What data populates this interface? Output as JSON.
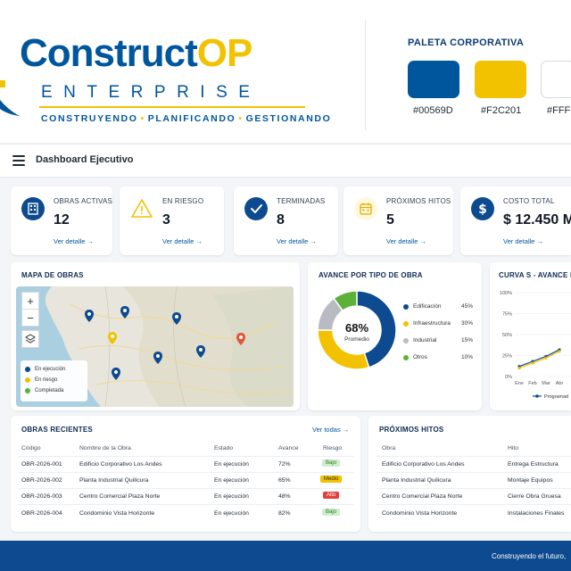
{
  "brand": {
    "name_main": "Construct",
    "name_accent": "OP",
    "subtitle": "ENTERPRISE",
    "tagline": [
      "CONSTRUYENDO",
      "PLANIFICANDO",
      "GESTIONANDO"
    ]
  },
  "palette": {
    "title": "PALETA CORPORATIVA",
    "swatches": [
      {
        "hex": "#00569D",
        "label": "#00569D"
      },
      {
        "hex": "#F2C201",
        "label": "#F2C201"
      },
      {
        "hex": "#FFFFFF",
        "label": "#FFFF"
      }
    ]
  },
  "topbar": {
    "menu_icon": "hamburger-menu-icon",
    "title": "Dashboard Ejecutivo"
  },
  "kpis": [
    {
      "label": "OBRAS ACTIVAS",
      "value": "12",
      "link": "Ver detalle →",
      "icon": "building-icon",
      "color": "#0d4a8f"
    },
    {
      "label": "EN RIESGO",
      "value": "3",
      "link": "Ver detalle →",
      "icon": "warning-icon",
      "color": "#F2C201"
    },
    {
      "label": "TERMINADAS",
      "value": "8",
      "link": "Ver detalle →",
      "icon": "check-icon",
      "color": "#0d4a8f"
    },
    {
      "label": "PRÓXIMOS HITOS",
      "value": "5",
      "link": "Ver detalle →",
      "icon": "calendar-icon",
      "color": "#F2C201"
    },
    {
      "label": "COSTO TOTAL",
      "value": "$ 12.450 M",
      "link": "Ver detalle →",
      "icon": "dollar-icon",
      "color": "#0d4a8f"
    }
  ],
  "map_panel": {
    "title": "MAPA DE OBRAS",
    "zoom_in": "+",
    "zoom_out": "−",
    "legend": [
      {
        "label": "En ejecución",
        "color": "#0d4a8f"
      },
      {
        "label": "En riesgo",
        "color": "#F2C201"
      },
      {
        "label": "Completada",
        "color": "#5bb13a"
      }
    ]
  },
  "donut_panel": {
    "title": "AVANCE POR TIPO DE OBRA",
    "center_value": "68%",
    "center_label": "Promedio",
    "slices": [
      {
        "label": "Edificación",
        "value": 45,
        "pct": "45%",
        "color": "#0d4a8f"
      },
      {
        "label": "Infraestructura",
        "value": 30,
        "pct": "30%",
        "color": "#F2C201"
      },
      {
        "label": "Industrial",
        "value": 15,
        "pct": "15%",
        "color": "#b8bcc2"
      },
      {
        "label": "Otros",
        "value": 10,
        "pct": "10%",
        "color": "#5bb13a"
      }
    ]
  },
  "chart_data": {
    "type": "line",
    "title": "CURVA S - AVANCE FÍS",
    "x": [
      "Ene",
      "Feb",
      "Mar",
      "Abr"
    ],
    "y_ticks": [
      "100%",
      "75%",
      "50%",
      "25%",
      "0%"
    ],
    "ylim": [
      0,
      100
    ],
    "grid": true,
    "series": [
      {
        "name": "Programado",
        "values": [
          12,
          18,
          24,
          32
        ],
        "color": "#0d4a8f"
      },
      {
        "values": [
          10,
          16,
          22,
          30
        ],
        "color": "#F2C201"
      }
    ],
    "legend": "Programad"
  },
  "obras_panel": {
    "title": "OBRAS RECIENTES",
    "link": "Ver todas →",
    "headers": [
      "Código",
      "Nombre de la Obra",
      "Estado",
      "Avance",
      "Riesgo"
    ],
    "rows": [
      {
        "codigo": "OBR-2026-001",
        "nombre": "Edificio Corporativo Los Andes",
        "estado": "En ejecución",
        "avance": "72%",
        "riesgo": "Bajo"
      },
      {
        "codigo": "OBR-2026-002",
        "nombre": "Planta Industrial Quilicura",
        "estado": "En ejecución",
        "avance": "65%",
        "riesgo": "Medio"
      },
      {
        "codigo": "OBR-2026-003",
        "nombre": "Centro Comercial Plaza Norte",
        "estado": "En ejecución",
        "avance": "48%",
        "riesgo": "Alto"
      },
      {
        "codigo": "OBR-2026-004",
        "nombre": "Condominio Vista Horizonte",
        "estado": "En ejecución",
        "avance": "82%",
        "riesgo": "Bajo"
      }
    ]
  },
  "hitos_panel": {
    "title": "PRÓXIMOS HITOS",
    "headers": [
      "Obra",
      "Hito"
    ],
    "rows": [
      {
        "obra": "Edificio Corporativo Los Andes",
        "hito": "Entrega Estructura"
      },
      {
        "obra": "Planta Industrial Quilicura",
        "hito": "Montaje Equipos"
      },
      {
        "obra": "Centro Comercial Plaza Norte",
        "hito": "Cierre Obra Gruesa"
      },
      {
        "obra": "Condominio Vista Horizonte",
        "hito": "Instalaciones Finales"
      }
    ]
  },
  "footer": {
    "text": "Construyendo el futuro,"
  }
}
